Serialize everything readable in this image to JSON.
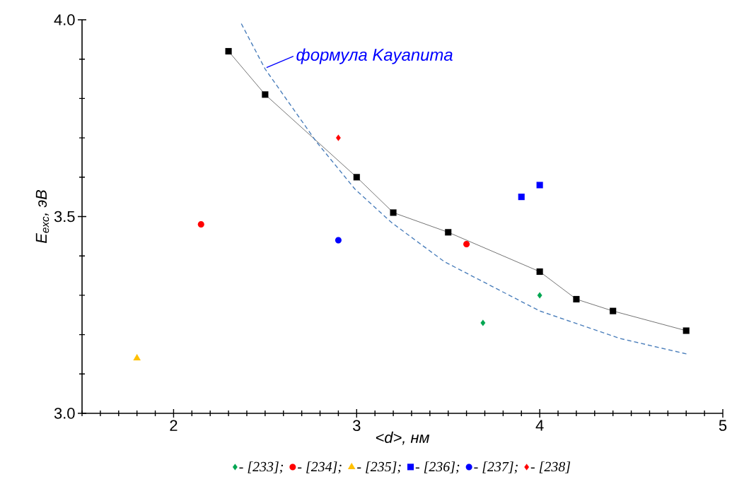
{
  "chart_data": {
    "type": "scatter",
    "xlabel": "<*d*>, нм",
    "ylabel": "E$_{exc}$, эВ",
    "xlim": [
      1.5,
      5
    ],
    "ylim": [
      3.0,
      4.0
    ],
    "xticks": [
      {
        "value": 1.5,
        "label": null
      },
      {
        "value": 1.6,
        "label": null
      },
      {
        "value": 1.7,
        "label": null
      },
      {
        "value": 1.8,
        "label": null
      },
      {
        "value": 1.9,
        "label": null
      },
      2,
      {
        "value": 2.1,
        "label": null
      },
      {
        "value": 2.2,
        "label": null
      },
      {
        "value": 2.3,
        "label": null
      },
      {
        "value": 2.4,
        "label": null
      },
      {
        "value": 2.5,
        "label": null
      },
      {
        "value": 2.6,
        "label": null
      },
      {
        "value": 2.7,
        "label": null
      },
      {
        "value": 2.8,
        "label": null
      },
      {
        "value": 2.9,
        "label": null
      },
      3,
      {
        "value": 3.1,
        "label": null
      },
      {
        "value": 3.2,
        "label": null
      },
      {
        "value": 3.3,
        "label": null
      },
      {
        "value": 3.4,
        "label": null
      },
      {
        "value": 3.5,
        "label": null
      },
      {
        "value": 3.6,
        "label": null
      },
      {
        "value": 3.7,
        "label": null
      },
      {
        "value": 3.8,
        "label": null
      },
      {
        "value": 3.9,
        "label": null
      },
      4,
      {
        "value": 4.1,
        "label": null
      },
      {
        "value": 4.2,
        "label": null
      },
      {
        "value": 4.3,
        "label": null
      },
      {
        "value": 4.4,
        "label": null
      },
      {
        "value": 4.5,
        "label": null
      },
      {
        "value": 4.6,
        "label": null
      },
      {
        "value": 4.7,
        "label": null
      },
      {
        "value": 4.8,
        "label": null
      },
      {
        "value": 4.9,
        "label": null
      },
      5
    ],
    "yticks": [
      {
        "value": 3.0,
        "label": "3.0"
      },
      {
        "value": 3.1,
        "label": null
      },
      {
        "value": 3.2,
        "label": null
      },
      {
        "value": 3.3,
        "label": null
      },
      {
        "value": 3.4,
        "label": null
      },
      {
        "value": 3.5,
        "label": "3.5"
      },
      {
        "value": 3.6,
        "label": null
      },
      {
        "value": 3.7,
        "label": null
      },
      {
        "value": 3.8,
        "label": null
      },
      {
        "value": 3.9,
        "label": null
      },
      {
        "value": 4.0,
        "label": "4.0"
      }
    ],
    "grid": false,
    "legend": "bottom",
    "annotations": [
      {
        "text": "формула Kayanuma",
        "x": 2.5,
        "y": 3.875
      }
    ],
    "series": [
      {
        "type": "line",
        "color": "#000000",
        "marker": "square",
        "line_style": "solid",
        "x": [
          2.3,
          2.5,
          3.0,
          3.2,
          3.5,
          4.0,
          4.2,
          4.4,
          4.8
        ],
        "values": [
          3.92,
          3.81,
          3.6,
          3.51,
          3.46,
          3.36,
          3.29,
          3.26,
          3.21
        ]
      },
      {
        "type": "line",
        "color": "#4a7ebb",
        "marker": "none",
        "line_style": "dashed",
        "x": [
          2.37,
          2.5,
          2.78,
          2.99,
          3.19,
          3.48,
          4.0,
          4.44,
          4.81
        ],
        "values": [
          3.99,
          3.875,
          3.69,
          3.57,
          3.485,
          3.385,
          3.26,
          3.19,
          3.15
        ]
      },
      {
        "name": "- [233];",
        "color": "#00a651",
        "marker": "diamond",
        "x": [
          3.69,
          4.0
        ],
        "values": [
          3.23,
          3.3
        ]
      },
      {
        "name": "- [234];",
        "color": "#ff0000",
        "marker": "circle",
        "x": [
          2.15,
          3.6
        ],
        "values": [
          3.48,
          3.43
        ]
      },
      {
        "name": "- [235];",
        "color": "#ffc000",
        "marker": "triangle",
        "x": [
          1.8
        ],
        "values": [
          3.14
        ]
      },
      {
        "name": "- [236];",
        "color": "#0000ff",
        "marker": "square",
        "x": [
          3.9,
          4.0
        ],
        "values": [
          3.55,
          3.58
        ]
      },
      {
        "name": "- [237];",
        "color": "#0000ff",
        "marker": "circle",
        "x": [
          2.9
        ],
        "values": [
          3.44
        ]
      },
      {
        "name": "- [238]",
        "color": "#ff0000",
        "marker": "diamond",
        "x": [
          2.9
        ],
        "values": [
          3.7
        ]
      }
    ]
  }
}
